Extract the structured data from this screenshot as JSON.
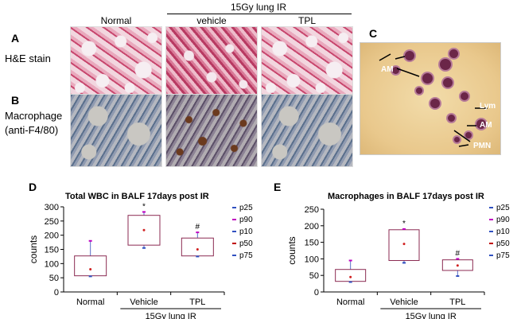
{
  "figure": {
    "panel_letters": {
      "a": "A",
      "b": "B",
      "c": "C",
      "d": "D",
      "e": "E"
    },
    "group_header": "15Gy lung IR",
    "columns": [
      "Normal",
      "vehicle",
      "TPL"
    ],
    "row_a_label": "H&E stain",
    "row_b_label_line1": "Macrophage",
    "row_b_label_line2": "(anti-F4/80)",
    "cyto_labels": {
      "am1": "AM",
      "lym": "Lym",
      "am2": "AM",
      "pmn": "PMN"
    }
  },
  "chart_data": [
    {
      "type": "box",
      "title": "Total WBC in BALF 17days post IR",
      "ylabel": "counts",
      "ylim": [
        0,
        300
      ],
      "yticks": [
        "0",
        "50",
        "100",
        "150",
        "200",
        "250",
        "300"
      ],
      "categories": [
        "Normal",
        "Vehicle",
        "TPL"
      ],
      "group_label": "15Gy lung IR",
      "legend": [
        "p25",
        "p90",
        "p10",
        "p50",
        "p75"
      ],
      "boxes": [
        {
          "p10": 55,
          "p25": 57,
          "p50": 80,
          "p75": 127,
          "p90": 180,
          "mean": 80,
          "marker": ""
        },
        {
          "p10": 155,
          "p25": 165,
          "p50": 218,
          "p75": 270,
          "p90": 282,
          "mean": 218,
          "marker": "*"
        },
        {
          "p10": 125,
          "p25": 127,
          "p50": 150,
          "p75": 190,
          "p90": 210,
          "mean": 150,
          "marker": "#"
        }
      ]
    },
    {
      "type": "box",
      "title": "Macrophages in BALF 17days post IR",
      "ylabel": "counts",
      "ylim": [
        0,
        250
      ],
      "yticks": [
        "0",
        "50",
        "100",
        "150",
        "200",
        "250"
      ],
      "categories": [
        "Normal",
        "Vehicle",
        "TPL"
      ],
      "group_label": "15Gy lung IR",
      "legend": [
        "p25",
        "p90",
        "p10",
        "p50",
        "p75"
      ],
      "boxes": [
        {
          "p10": 30,
          "p25": 32,
          "p50": 45,
          "p75": 68,
          "p90": 95,
          "mean": 45,
          "marker": ""
        },
        {
          "p10": 88,
          "p25": 95,
          "p50": 145,
          "p75": 188,
          "p90": 190,
          "mean": 145,
          "marker": "*"
        },
        {
          "p10": 48,
          "p25": 65,
          "p50": 80,
          "p75": 97,
          "p90": 100,
          "mean": 80,
          "marker": "#"
        }
      ]
    }
  ]
}
